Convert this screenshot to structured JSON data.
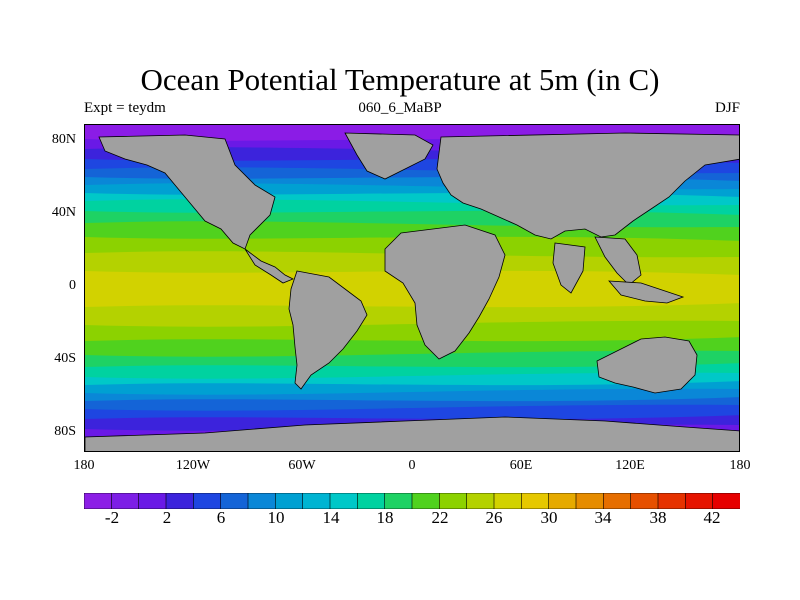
{
  "title": "Ocean Potential Temperature at 5m (in C)",
  "left_label": "Expt = teydm",
  "center_label": "060_6_MaBP",
  "right_label": "DJF",
  "y_ticks": [
    "80N",
    "40N",
    "0",
    "40S",
    "80S"
  ],
  "x_ticks": [
    "180",
    "120W",
    "60W",
    "0",
    "60E",
    "120E",
    "180"
  ],
  "colorbar": {
    "tick_labels": [
      "-2",
      "2",
      "6",
      "10",
      "14",
      "18",
      "22",
      "26",
      "30",
      "34",
      "38",
      "42"
    ],
    "colors": [
      "#8c1ee6",
      "#7d1ee6",
      "#6a19e6",
      "#3c23dc",
      "#1e46e1",
      "#1464d7",
      "#0a87d7",
      "#00a0d2",
      "#00b4d2",
      "#00c8c8",
      "#00d2a0",
      "#1ed264",
      "#50d21e",
      "#8cd200",
      "#b4d200",
      "#d2d200",
      "#e6c800",
      "#e6aa00",
      "#e68c00",
      "#e66e00",
      "#e65000",
      "#e63200",
      "#e61400",
      "#e60000"
    ]
  },
  "map": {
    "land_color": "#a0a0a0",
    "polar_color": "#8b1ce6",
    "sst_bands": [
      {
        "color": "#6a19e6"
      },
      {
        "color": "#3c23dc"
      },
      {
        "color": "#1e46e1"
      },
      {
        "color": "#1464d7"
      },
      {
        "color": "#0a87d7"
      },
      {
        "color": "#00a0d2"
      },
      {
        "color": "#00c8c8"
      },
      {
        "color": "#00d2a0"
      },
      {
        "color": "#1ed264"
      },
      {
        "color": "#50d21e"
      },
      {
        "color": "#8cd200"
      },
      {
        "color": "#b4d200"
      },
      {
        "color": "#d2d200"
      }
    ]
  }
}
